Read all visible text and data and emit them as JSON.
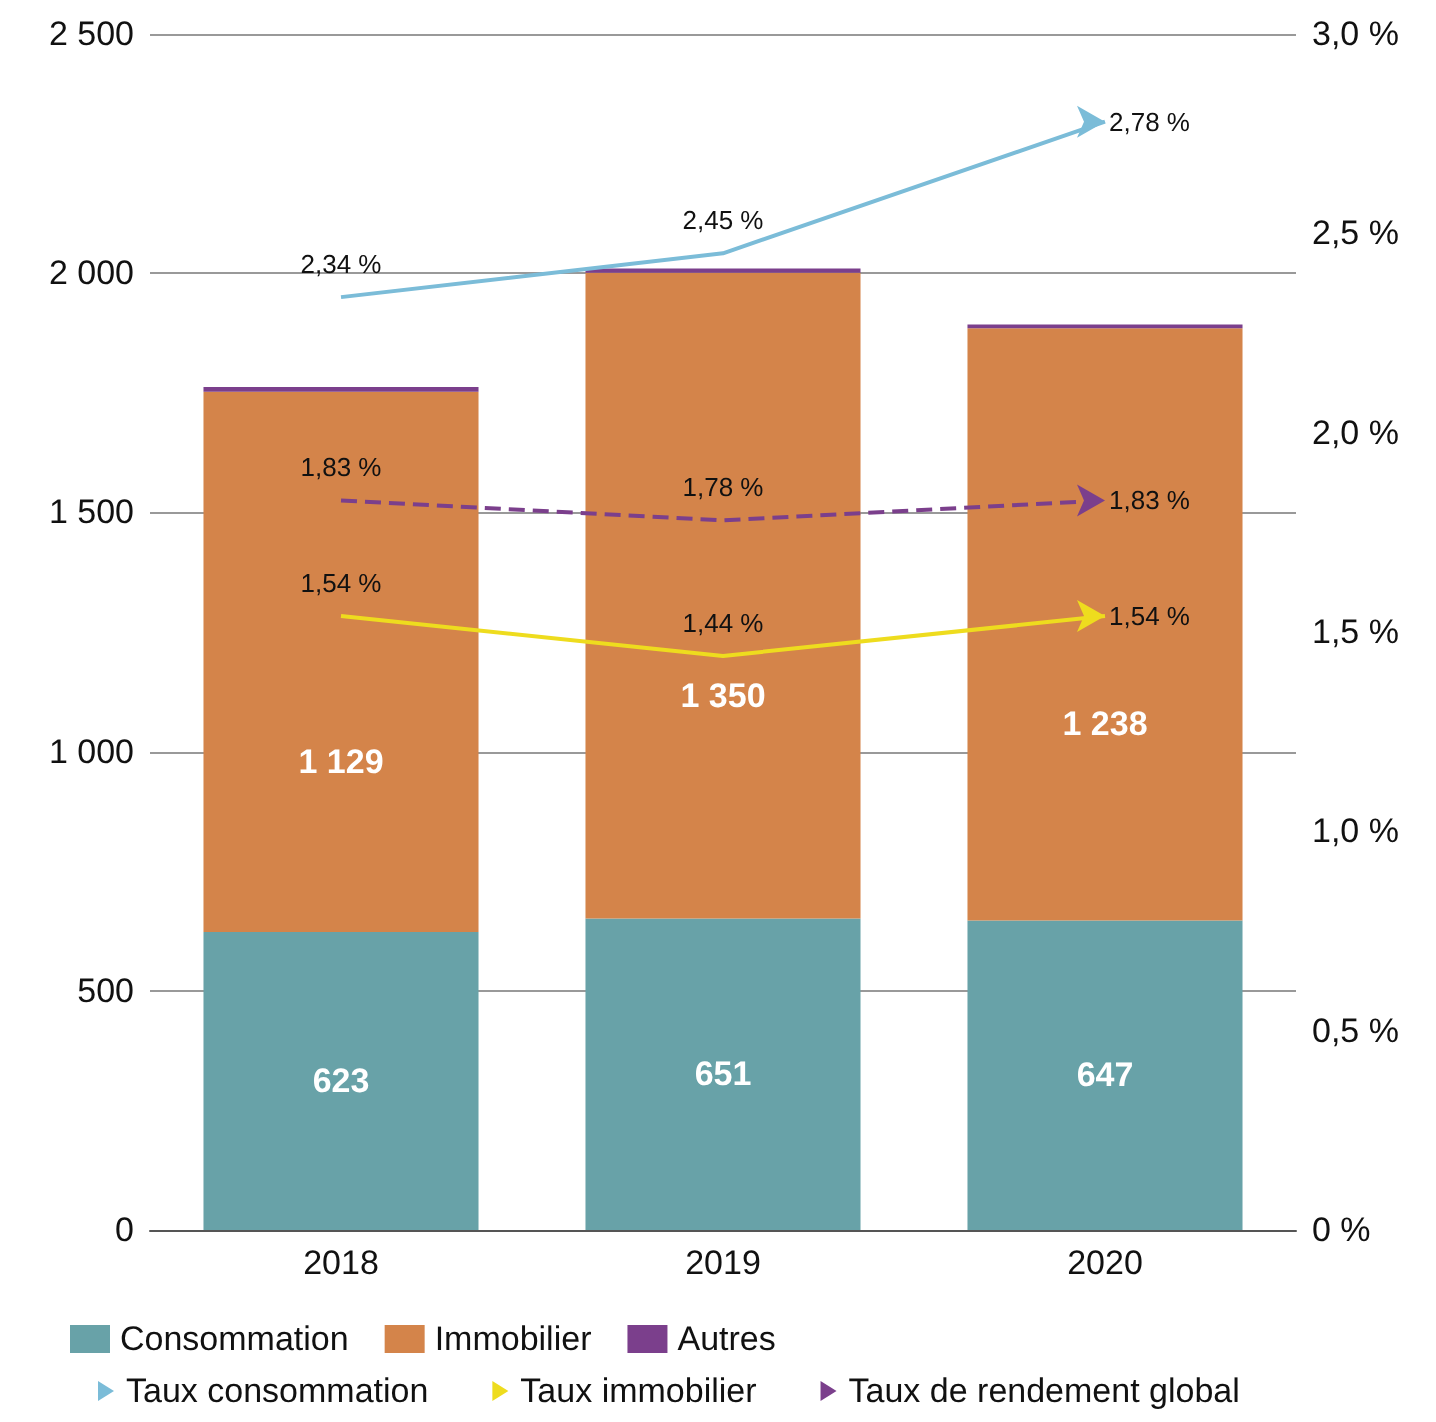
{
  "chart_data": {
    "type": "bar",
    "stacked": true,
    "categories": [
      "2018",
      "2019",
      "2020"
    ],
    "series": [
      {
        "name": "Consommation",
        "color": "#68a2a8",
        "values": [
          623,
          651,
          647
        ],
        "value_labels": [
          "623",
          "651",
          "647"
        ]
      },
      {
        "name": "Immobilier",
        "color": "#d4844a",
        "values": [
          1129,
          1350,
          1238
        ],
        "value_labels": [
          "1 129",
          "1 350",
          "1 238"
        ]
      },
      {
        "name": "Autres",
        "color": "#7b3f8c",
        "values": [
          10,
          9,
          8
        ],
        "value_labels": [
          null,
          null,
          null
        ]
      },
      {
        "name": "Taux consommation",
        "type": "line",
        "axis": "y2",
        "color": "#7bbcd8",
        "values": [
          2.34,
          2.45,
          2.78
        ],
        "value_labels": [
          "2,34 %",
          "2,45 %",
          "2,78 %"
        ],
        "line_style": "solid"
      },
      {
        "name": "Taux immobilier",
        "type": "line",
        "axis": "y2",
        "color": "#eedc1e",
        "values": [
          1.54,
          1.44,
          1.54
        ],
        "value_labels": [
          "1,54 %",
          "1,44 %",
          "1,54 %"
        ],
        "line_style": "solid"
      },
      {
        "name": "Taux de rendement global",
        "type": "line",
        "axis": "y2",
        "color": "#7b3f8c",
        "values": [
          1.83,
          1.78,
          1.83
        ],
        "value_labels": [
          "1,83 %",
          "1,78 %",
          "1,83 %"
        ],
        "line_style": "dashed"
      }
    ],
    "ylim": [
      0,
      2500
    ],
    "yticks": [
      0,
      500,
      {
        "value": 1000,
        "label": "1 000"
      },
      {
        "value": 1500,
        "label": "1 500"
      },
      {
        "value": 2000,
        "label": "2 000"
      },
      {
        "value": 2500,
        "label": "2 500"
      }
    ],
    "y2lim": [
      0,
      3
    ],
    "y2ticks": [
      {
        "value": 0,
        "label": "0 %"
      },
      {
        "value": 0.5,
        "label": "0,5 %"
      },
      {
        "value": 1,
        "label": "1,0 %"
      },
      {
        "value": 1.5,
        "label": "1,5 %"
      },
      {
        "value": 2,
        "label": "2,0 %"
      },
      {
        "value": 2.5,
        "label": "2,5 %"
      },
      {
        "value": 3,
        "label": "3,0 %"
      }
    ],
    "grid": "y",
    "legend": "bottom",
    "marker": "none"
  }
}
